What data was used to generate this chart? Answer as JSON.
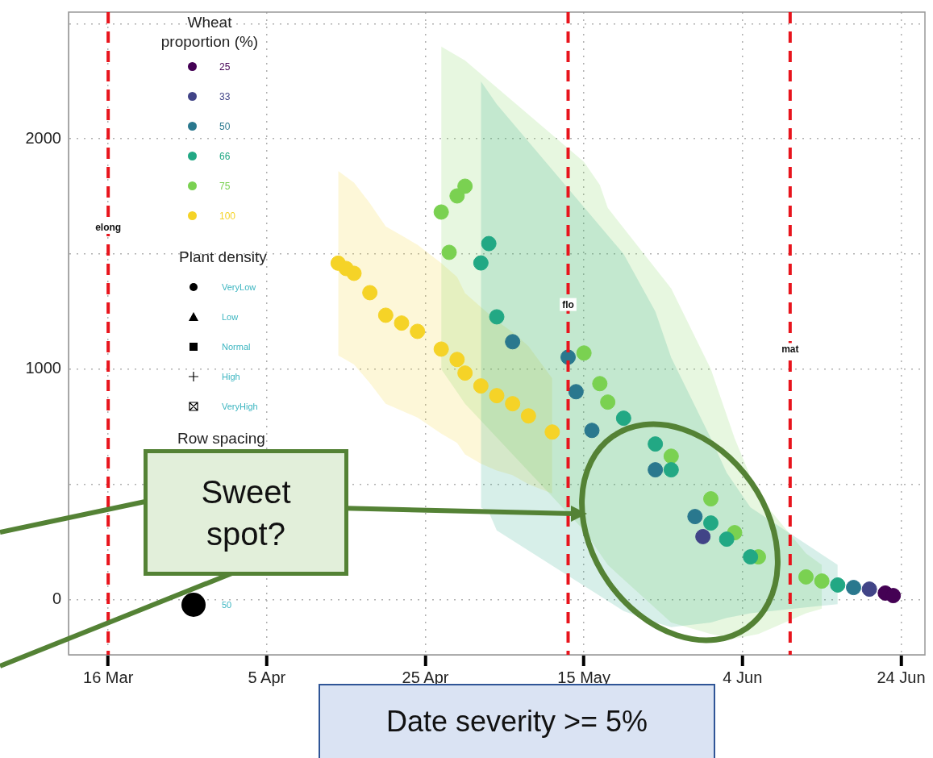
{
  "chart_data": {
    "type": "scatter",
    "legend_title": "Wheat proportion (%)",
    "legend": "top left",
    "grid": true,
    "marker": "circle",
    "xlim": [
      "--03-11",
      "--06-27"
    ],
    "xticks": [
      {
        "value": "--03-16",
        "label": "16 Mar"
      },
      {
        "value": "--04-05",
        "label": "5 Apr"
      },
      {
        "value": "--04-25",
        "label": "25 Apr"
      },
      {
        "value": "--05-15",
        "label": "15 May"
      },
      {
        "value": "--06-04",
        "label": "4 Jun"
      },
      {
        "value": "--06-24",
        "label": "24 Jun"
      }
    ],
    "ylim": [
      -240,
      2550
    ],
    "yticks": [
      0,
      {
        "value": 500,
        "label": null
      },
      1000,
      {
        "value": 1500,
        "label": null
      },
      2000,
      {
        "value": 2500,
        "label": null
      }
    ],
    "ref_lines": [
      {
        "axis": "x",
        "value": "--03-16",
        "label": "elong",
        "color": "#e8141c",
        "line_style": "dashed"
      },
      {
        "axis": "x",
        "value": "--05-13",
        "label": "flo",
        "color": "#e8141c",
        "line_style": "dashed"
      },
      {
        "axis": "x",
        "value": "--06-10",
        "label": "mat",
        "color": "#e8141c",
        "line_style": "dashed"
      }
    ],
    "annotations": [
      "Plant density",
      "VeryLow",
      "Low",
      "Normal",
      "High",
      "VeryHigh",
      "Row spacing",
      "50",
      "Sweet spot?",
      "Date severity >= 5%"
    ],
    "series": [
      {
        "name": "25",
        "color": "#440154",
        "x": [
          "--06-22",
          "--06-23"
        ],
        "values": [
          28,
          17
        ]
      },
      {
        "name": "33",
        "color": "#414487",
        "x": [
          "--05-30",
          "--06-20"
        ],
        "values": [
          273,
          45
        ]
      },
      {
        "name": "50",
        "color": "#2a788e",
        "x": [
          "--05-06",
          "--05-13",
          "--05-14",
          "--05-16",
          "--05-24",
          "--05-29",
          "--06-18"
        ],
        "values": [
          1119,
          1052,
          902,
          734,
          563,
          360,
          52
        ]
      },
      {
        "name": "66",
        "color": "#22a884",
        "x": [
          "--05-02",
          "--05-03",
          "--05-04",
          "--05-20",
          "--05-24",
          "--05-26",
          "--05-31",
          "--06-02",
          "--06-05",
          "--06-16"
        ],
        "values": [
          1461,
          1545,
          1227,
          787,
          675,
          563,
          332,
          262,
          185,
          63
        ],
        "upper": [
          2250,
          2200,
          2150,
          1500,
          1250,
          1050,
          700,
          550,
          400,
          150
        ],
        "lower": [
          400,
          380,
          300,
          -50,
          -100,
          -120,
          -100,
          -80,
          -60,
          -20
        ]
      },
      {
        "name": "75",
        "color": "#7ad151",
        "x": [
          "--04-27",
          "--04-28",
          "--04-29",
          "--04-30",
          "--05-15",
          "--05-17",
          "--05-18",
          "--05-26",
          "--05-31",
          "--06-03",
          "--06-06",
          "--06-12",
          "--06-14"
        ],
        "values": [
          1682,
          1507,
          1752,
          1794,
          1070,
          937,
          857,
          622,
          437,
          290,
          185,
          98,
          80
        ],
        "upper": [
          2400,
          2380,
          2360,
          2340,
          1900,
          1800,
          1700,
          1350,
          1000,
          700,
          450,
          200,
          150
        ],
        "lower": [
          1000,
          950,
          900,
          850,
          300,
          200,
          150,
          -100,
          -150,
          -170,
          -150,
          -60,
          -40
        ]
      },
      {
        "name": "100",
        "color": "#f5d327",
        "x": [
          "--04-14",
          "--04-15",
          "--04-16",
          "--04-18",
          "--04-20",
          "--04-22",
          "--04-24",
          "--04-27",
          "--04-29",
          "--04-30",
          "--05-02",
          "--05-04",
          "--05-06",
          "--05-08",
          "--05-11"
        ],
        "values": [
          1460,
          1437,
          1416,
          1332,
          1234,
          1200,
          1164,
          1087,
          1042,
          983,
          927,
          885,
          850,
          797,
          727
        ],
        "upper": [
          1860,
          1835,
          1810,
          1720,
          1620,
          1580,
          1540,
          1460,
          1400,
          1330,
          1270,
          1210,
          1160,
          1100,
          960
        ],
        "lower": [
          1060,
          1040,
          1020,
          940,
          850,
          820,
          790,
          720,
          680,
          630,
          590,
          560,
          540,
          500,
          460
        ]
      }
    ]
  }
}
